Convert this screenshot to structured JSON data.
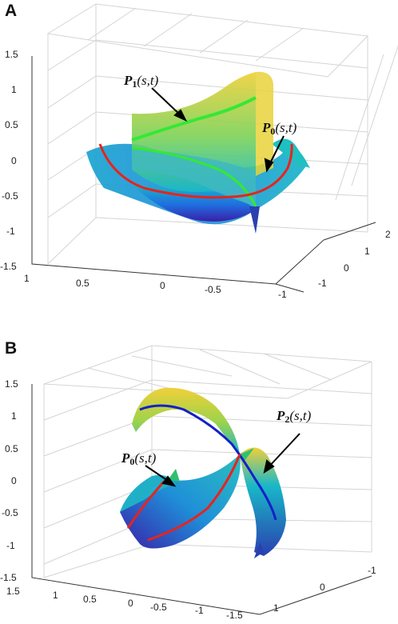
{
  "chart_data": [
    {
      "panel": "A",
      "type": "surface3d",
      "zlim": [
        -1.5,
        1.5
      ],
      "z_ticks": [
        "1.5",
        "1",
        "0.5",
        "0",
        "-0.5",
        "-1",
        "-1.5"
      ],
      "x_ticks": [
        "1",
        "0.5",
        "0",
        "-0.5",
        "-1"
      ],
      "y_ticks": [
        "-1",
        "0",
        "1",
        "2"
      ],
      "grid": true,
      "annotations": [
        {
          "bold": "P",
          "sub": "1",
          "args": "(s,t)"
        },
        {
          "bold": "P",
          "sub": "0",
          "args": "(s,t)"
        }
      ],
      "curve_colors": {
        "P1": "#35e835",
        "P0": "#e8231d"
      },
      "colormap": [
        "#3a1fa8",
        "#1f6fe0",
        "#19b8c8",
        "#5fd06a",
        "#e9d23c"
      ]
    },
    {
      "panel": "B",
      "type": "surface3d",
      "zlim": [
        -1.5,
        1.5
      ],
      "z_ticks": [
        "1.5",
        "1",
        "0.5",
        "0",
        "-0.5",
        "-1",
        "-1.5"
      ],
      "x_ticks": [
        "1.5",
        "1",
        "0.5",
        "0",
        "-0.5",
        "-1",
        "-1.5"
      ],
      "y_ticks": [
        "-1",
        "0",
        "1"
      ],
      "grid": true,
      "annotations": [
        {
          "bold": "P",
          "sub": "2",
          "args": "(s,t)"
        },
        {
          "bold": "P",
          "sub": "0",
          "args": "(s,t)"
        }
      ],
      "curve_colors": {
        "P2": "#1420c8",
        "P0": "#e8231d"
      },
      "colormap": [
        "#3a1fa8",
        "#1f6fe0",
        "#19b8c8",
        "#5fd06a",
        "#e9d23c"
      ]
    }
  ],
  "panels": {
    "A": "A",
    "B": "B"
  }
}
